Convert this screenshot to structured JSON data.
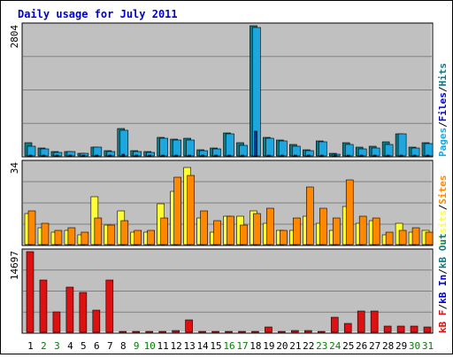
{
  "title": "Daily usage for July 2011",
  "colors": {
    "pages": "#0a7a86",
    "files": "#1ea6de",
    "hits": "#1ea6de",
    "hits_dark": "#003399",
    "visits": "#ffff33",
    "sites": "#ff8800",
    "kb": "#dd1111",
    "day_black": "#000000",
    "day_green": "#008000",
    "panel_bg": "#c0c0c0",
    "grid": "#808080"
  },
  "chart_data": [
    {
      "type": "bar",
      "panel": "top",
      "ymax_label": "2804",
      "legend": [
        {
          "text": "Pages",
          "color": "#1ea6de"
        },
        {
          "text": "/",
          "color": "#000000"
        },
        {
          "text": "Files",
          "color": "#0000cc"
        },
        {
          "text": "/",
          "color": "#000000"
        },
        {
          "text": "Hits",
          "color": "#0a7a86"
        }
      ],
      "ymax": 2804,
      "categories": [
        "1",
        "2",
        "3",
        "4",
        "5",
        "6",
        "7",
        "8",
        "9",
        "10",
        "11",
        "12",
        "13",
        "14",
        "15",
        "16",
        "17",
        "18",
        "19",
        "20",
        "21",
        "22",
        "23",
        "24",
        "25",
        "26",
        "27",
        "28",
        "29",
        "30",
        "31"
      ],
      "series": [
        {
          "name": "Hits",
          "values": [
            286,
            172,
            86,
            103,
            57,
            200,
            114,
            592,
            114,
            89,
            392,
            365,
            375,
            143,
            163,
            490,
            286,
            2804,
            410,
            346,
            247,
            137,
            326,
            60,
            277,
            183,
            209,
            310,
            480,
            193,
            286
          ]
        },
        {
          "name": "Files",
          "values": [
            215,
            153,
            80,
            91,
            51,
            183,
            97,
            561,
            100,
            77,
            380,
            349,
            346,
            120,
            149,
            474,
            229,
            2764,
            380,
            324,
            211,
            110,
            304,
            45,
            246,
            160,
            180,
            250,
            470,
            170,
            270
          ]
        },
        {
          "name": "Pages",
          "values": [
            20,
            15,
            8,
            10,
            6,
            15,
            10,
            30,
            10,
            8,
            20,
            18,
            18,
            12,
            12,
            20,
            15,
            540,
            20,
            18,
            14,
            10,
            16,
            6,
            15,
            12,
            14,
            18,
            20,
            12,
            14
          ]
        }
      ]
    },
    {
      "type": "bar",
      "panel": "middle",
      "ymax_label": "34",
      "legend": [
        {
          "text": "Visits",
          "color": "#ffff33"
        },
        {
          "text": "/",
          "color": "#000000"
        },
        {
          "text": "Sites",
          "color": "#ff8800"
        }
      ],
      "ymax": 34,
      "categories": [
        "1",
        "2",
        "3",
        "4",
        "5",
        "6",
        "7",
        "8",
        "9",
        "10",
        "11",
        "12",
        "13",
        "14",
        "15",
        "16",
        "17",
        "18",
        "19",
        "20",
        "21",
        "22",
        "23",
        "24",
        "25",
        "26",
        "27",
        "28",
        "29",
        "30",
        "31"
      ],
      "series": [
        {
          "name": "Visits",
          "values": [
            13,
            7,
            5,
            6,
            4,
            20,
            8,
            14,
            5,
            5,
            17,
            22,
            32,
            11,
            5,
            12,
            12,
            14,
            9,
            6,
            6,
            12,
            9,
            6,
            16,
            9,
            10,
            4,
            9,
            5,
            6
          ]
        },
        {
          "name": "Sites",
          "values": [
            14,
            9,
            6,
            7,
            5,
            11,
            8,
            10,
            6,
            6,
            11,
            28,
            29,
            14,
            10,
            12,
            8,
            13,
            15,
            6,
            11,
            24,
            15,
            11,
            27,
            12,
            11,
            5,
            6,
            7,
            5
          ]
        }
      ]
    },
    {
      "type": "bar",
      "panel": "bottom",
      "ymax_label": "14697",
      "legend": [
        {
          "text": "kB F",
          "color": "#dd1111"
        },
        {
          "text": "/",
          "color": "#000000"
        },
        {
          "text": "kB In",
          "color": "#0000cc"
        },
        {
          "text": "/",
          "color": "#000000"
        },
        {
          "text": "kB Out",
          "color": "#0a7a86"
        }
      ],
      "ymax": 14697,
      "categories": [
        "1",
        "2",
        "3",
        "4",
        "5",
        "6",
        "7",
        "8",
        "9",
        "10",
        "11",
        "12",
        "13",
        "14",
        "15",
        "16",
        "17",
        "18",
        "19",
        "20",
        "21",
        "22",
        "23",
        "24",
        "25",
        "26",
        "27",
        "28",
        "29",
        "30",
        "31"
      ],
      "series": [
        {
          "name": "kB F",
          "values": [
            14697,
            9500,
            3700,
            8200,
            7300,
            4000,
            9500,
            100,
            150,
            120,
            150,
            250,
            2200,
            150,
            200,
            150,
            150,
            150,
            1000,
            200,
            300,
            400,
            200,
            2800,
            1600,
            3900,
            3900,
            1200,
            1200,
            1100,
            1000
          ]
        }
      ]
    }
  ],
  "day_labels": [
    {
      "d": "1",
      "c": "#000000"
    },
    {
      "d": "2",
      "c": "#008000"
    },
    {
      "d": "3",
      "c": "#008000"
    },
    {
      "d": "4",
      "c": "#000000"
    },
    {
      "d": "5",
      "c": "#000000"
    },
    {
      "d": "6",
      "c": "#000000"
    },
    {
      "d": "7",
      "c": "#000000"
    },
    {
      "d": "8",
      "c": "#000000"
    },
    {
      "d": "9",
      "c": "#008000"
    },
    {
      "d": "10",
      "c": "#008000"
    },
    {
      "d": "11",
      "c": "#000000"
    },
    {
      "d": "12",
      "c": "#000000"
    },
    {
      "d": "13",
      "c": "#000000"
    },
    {
      "d": "14",
      "c": "#000000"
    },
    {
      "d": "15",
      "c": "#000000"
    },
    {
      "d": "16",
      "c": "#008000"
    },
    {
      "d": "17",
      "c": "#008000"
    },
    {
      "d": "18",
      "c": "#000000"
    },
    {
      "d": "19",
      "c": "#000000"
    },
    {
      "d": "20",
      "c": "#000000"
    },
    {
      "d": "21",
      "c": "#000000"
    },
    {
      "d": "22",
      "c": "#000000"
    },
    {
      "d": "23",
      "c": "#008000"
    },
    {
      "d": "24",
      "c": "#008000"
    },
    {
      "d": "25",
      "c": "#000000"
    },
    {
      "d": "26",
      "c": "#000000"
    },
    {
      "d": "27",
      "c": "#000000"
    },
    {
      "d": "28",
      "c": "#000000"
    },
    {
      "d": "29",
      "c": "#000000"
    },
    {
      "d": "30",
      "c": "#008000"
    },
    {
      "d": "31",
      "c": "#008000"
    }
  ]
}
